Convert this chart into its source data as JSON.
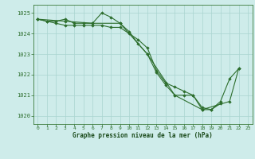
{
  "title": "Graphe pression niveau de la mer (hPa)",
  "bg_color": "#ceecea",
  "grid_color": "#aad4d0",
  "line_color": "#2d6e2d",
  "marker_color": "#2d6e2d",
  "xlim": [
    -0.5,
    23.5
  ],
  "ylim": [
    1019.6,
    1025.4
  ],
  "yticks": [
    1020,
    1021,
    1022,
    1023,
    1024,
    1025
  ],
  "xticks": [
    0,
    1,
    2,
    3,
    4,
    5,
    6,
    7,
    8,
    9,
    10,
    11,
    12,
    13,
    14,
    15,
    16,
    17,
    18,
    19,
    20,
    21,
    22,
    23
  ],
  "series1": {
    "x": [
      0,
      1,
      2,
      3,
      4,
      5,
      6,
      7,
      8,
      9,
      10,
      11,
      12,
      13,
      14,
      15,
      16,
      17,
      18,
      19,
      20,
      21,
      22
    ],
    "y": [
      1024.7,
      1024.6,
      1024.6,
      1024.7,
      1024.5,
      1024.5,
      1024.5,
      1025.0,
      1024.8,
      1024.5,
      1024.1,
      1023.5,
      1023.0,
      1022.1,
      1021.5,
      1021.0,
      1021.0,
      1021.0,
      1020.3,
      1020.3,
      1020.7,
      1021.8,
      1022.3
    ]
  },
  "series2": {
    "x": [
      0,
      1,
      2,
      3,
      4,
      5,
      6,
      7,
      8,
      9,
      10,
      11,
      12,
      13,
      14,
      15,
      16,
      17,
      18,
      19,
      20
    ],
    "y": [
      1024.7,
      1024.6,
      1024.5,
      1024.4,
      1024.4,
      1024.4,
      1024.4,
      1024.4,
      1024.3,
      1024.3,
      1024.0,
      1023.7,
      1023.3,
      1022.2,
      1021.6,
      1021.4,
      1021.2,
      1021.0,
      1020.4,
      1020.3,
      1020.6
    ]
  },
  "series3": {
    "x": [
      0,
      3,
      6,
      9,
      12,
      15,
      18,
      21,
      22
    ],
    "y": [
      1024.7,
      1024.6,
      1024.5,
      1024.5,
      1023.0,
      1021.0,
      1020.3,
      1020.7,
      1022.3
    ]
  }
}
